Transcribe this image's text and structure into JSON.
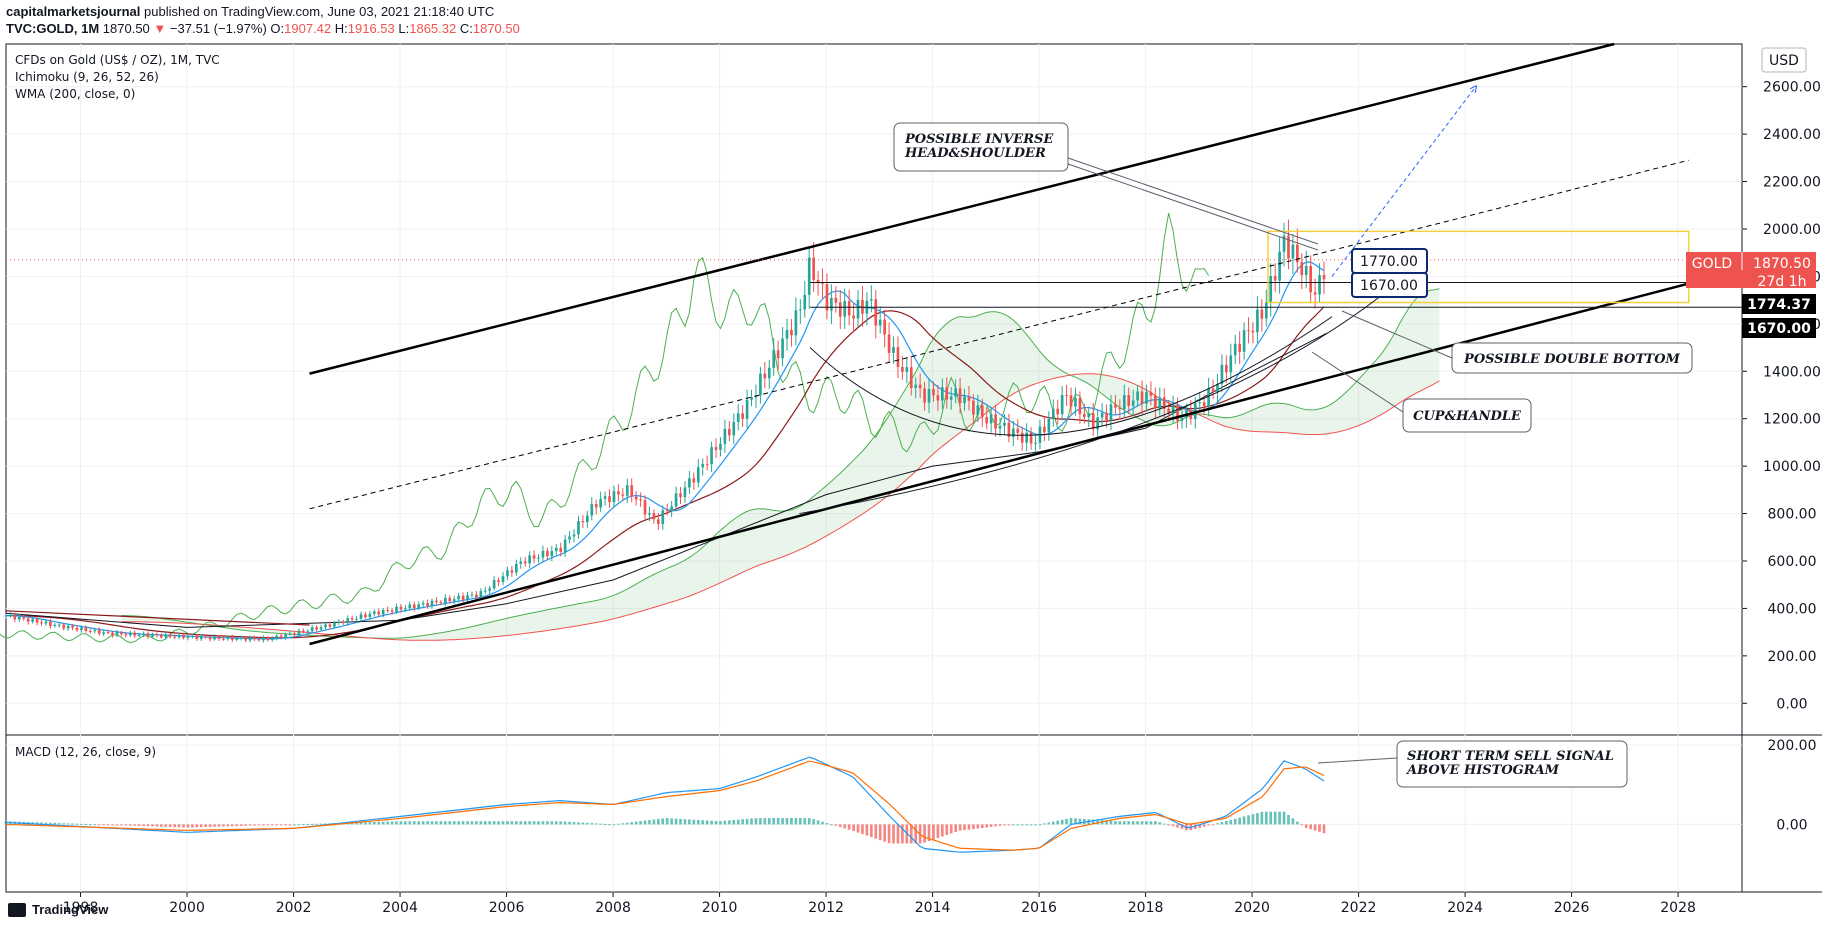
{
  "header": {
    "author": "capitalmarketsjournal",
    "published": "published on TradingView.com, June 03, 2021 21:18:40 UTC",
    "symbol": "TVC:GOLD, 1M",
    "last": "1870.50",
    "change_arrow": "▼",
    "change": "−37.51 (−1.97%)",
    "o_label": "O:",
    "o_value": "1907.42",
    "h_label": "H:",
    "h_value": "1916.53",
    "l_label": "L:",
    "l_value": "1865.32",
    "c_label": "C:",
    "c_value": "1870.50"
  },
  "legend": {
    "title": "CFDs on Gold (US$ / OZ), 1M, TVC",
    "ichimoku": "Ichimoku (9, 26, 52, 26)",
    "wma": "WMA (200, close, 0)",
    "macd": "MACD (12, 26, close, 9)"
  },
  "currency_button": "USD",
  "price_labels": {
    "gold_tag": "GOLD",
    "gold_price": "1870.50",
    "countdown": "27d 1h",
    "level1": "1774.37",
    "level2": "1670.00"
  },
  "callouts": {
    "c1770": "1770.00",
    "c1670": "1670.00",
    "ihs_line1": "POSSIBLE INVERSE",
    "ihs_line2": "HEAD&SHOULDER",
    "double_bottom": "POSSIBLE DOUBLE BOTTOM",
    "cup_handle": "CUP&HANDLE",
    "sell_line1": "SHORT TERM SELL SIGNAL",
    "sell_line2": "ABOVE HISTOGRAM"
  },
  "footer": {
    "brand": "TradingView"
  },
  "colors": {
    "up": "#26a69a",
    "down": "#ef5350",
    "tenkan": "#2196f3",
    "kijun": "#8b1a1a",
    "lagging": "#4caf50",
    "spanA": "#4caf50",
    "spanB": "#ef5350",
    "wma": "#131722",
    "macd": "#2196f3",
    "signal": "#ff6d00",
    "highlight": "#f4d03f"
  },
  "chart_data": {
    "type": "candlestick",
    "x_ticks": [
      "1998",
      "2000",
      "2002",
      "2004",
      "2006",
      "2008",
      "2010",
      "2012",
      "2014",
      "2016",
      "2018",
      "2020",
      "2022",
      "2024",
      "2026",
      "2028"
    ],
    "y_ticks": [
      "2600.00",
      "2400.00",
      "2200.00",
      "2000.00",
      "1800.00",
      "1600.00",
      "1400.00",
      "1200.00",
      "1000.00",
      "800.00",
      "600.00",
      "400.00",
      "200.00",
      "0.00"
    ],
    "macd_ticks": [
      "200.00",
      "0.00"
    ],
    "xlim": [
      1996.6,
      2029.2
    ],
    "ylim": [
      -100,
      2780
    ],
    "macd_ylim": [
      -150,
      220
    ],
    "price_series": {
      "x": [
        1996.6,
        1997.5,
        1998.5,
        1999.5,
        2000.5,
        2001.5,
        2002.5,
        2003.5,
        2004.5,
        2005.5,
        2006.3,
        2007.0,
        2007.7,
        2008.3,
        2008.8,
        2009.5,
        2010.0,
        2010.5,
        2011.0,
        2011.5,
        2011.7,
        2012.0,
        2012.5,
        2012.8,
        2013.3,
        2013.8,
        2014.5,
        2015.0,
        2015.9,
        2016.5,
        2017.0,
        2017.5,
        2018.0,
        2018.7,
        2019.2,
        2019.7,
        2020.2,
        2020.6,
        2020.9,
        2021.2,
        2021.4
      ],
      "close": [
        370,
        330,
        295,
        285,
        275,
        270,
        320,
        380,
        420,
        460,
        600,
        650,
        850,
        900,
        760,
        950,
        1100,
        1250,
        1450,
        1650,
        1850,
        1700,
        1640,
        1700,
        1450,
        1300,
        1300,
        1200,
        1100,
        1300,
        1180,
        1260,
        1300,
        1200,
        1300,
        1500,
        1650,
        1950,
        1850,
        1720,
        1870
      ]
    },
    "wma_series": {
      "x": [
        1996.6,
        2000,
        2004,
        2006,
        2008,
        2010,
        2012,
        2014,
        2016,
        2018,
        2020,
        2021.4
      ],
      "y": [
        380,
        320,
        350,
        420,
        520,
        700,
        880,
        1000,
        1060,
        1160,
        1400,
        1560
      ]
    },
    "levels": [
      1774.37,
      1670.0
    ],
    "current": 1870.5,
    "macd_series": {
      "x": [
        1996.6,
        2000,
        2002,
        2004,
        2006,
        2007,
        2008,
        2009,
        2010,
        2010.7,
        2011.7,
        2012.5,
        2013.2,
        2013.8,
        2014.5,
        2015.5,
        2016,
        2016.6,
        2017.5,
        2018.2,
        2018.8,
        2019.5,
        2020.2,
        2020.6,
        2021.0,
        2021.4
      ],
      "macd": [
        5,
        -20,
        -10,
        20,
        50,
        60,
        50,
        80,
        90,
        120,
        170,
        120,
        20,
        -60,
        -70,
        -65,
        -60,
        0,
        20,
        30,
        -10,
        20,
        90,
        160,
        140,
        105
      ],
      "signal": [
        0,
        -15,
        -10,
        15,
        45,
        55,
        50,
        70,
        85,
        110,
        160,
        130,
        50,
        -30,
        -60,
        -65,
        -60,
        -10,
        15,
        25,
        0,
        15,
        70,
        140,
        145,
        120
      ]
    }
  }
}
